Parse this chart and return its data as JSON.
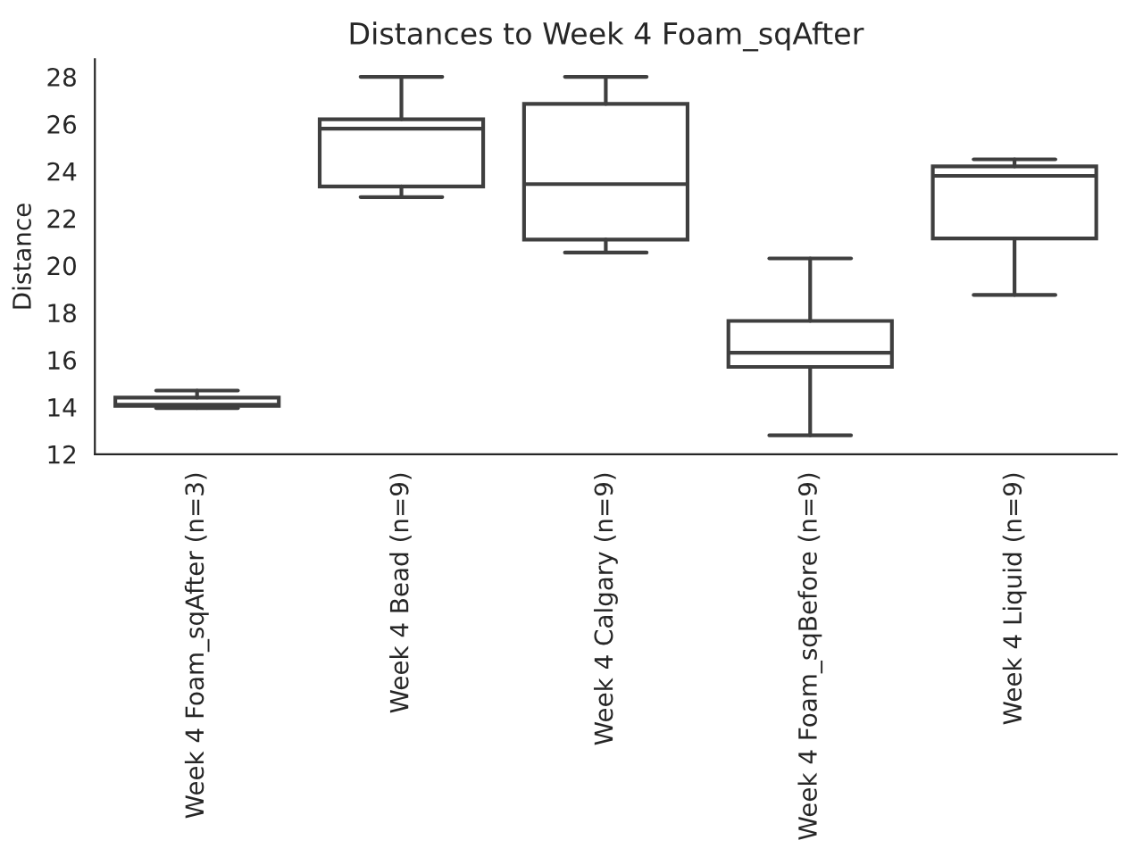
{
  "chart_data": {
    "type": "box",
    "title": "Distances to Week 4 Foam_sqAfter",
    "ylabel": "Distance",
    "categories": [
      "Week 4 Foam_sqAfter (n=3)",
      "Week 4 Bead (n=9)",
      "Week 4 Calgary (n=9)",
      "Week 4 Foam_sqBefore (n=9)",
      "Week 4 Liquid (n=9)"
    ],
    "boxes": [
      {
        "low": 13.95,
        "q1": 14.05,
        "median": 14.1,
        "q3": 14.4,
        "high": 14.7
      },
      {
        "low": 22.9,
        "q1": 23.35,
        "median": 25.8,
        "q3": 26.2,
        "high": 28.0
      },
      {
        "low": 20.55,
        "q1": 21.1,
        "median": 23.45,
        "q3": 26.85,
        "high": 28.0
      },
      {
        "low": 12.8,
        "q1": 15.7,
        "median": 16.3,
        "q3": 17.65,
        "high": 20.3
      },
      {
        "low": 18.75,
        "q1": 21.15,
        "median": 23.8,
        "q3": 24.2,
        "high": 24.5
      }
    ],
    "color": "#3f3f3f",
    "ylim": [
      12,
      28.75
    ],
    "yticks": [
      12,
      14,
      16,
      18,
      20,
      22,
      24,
      26,
      28
    ]
  }
}
